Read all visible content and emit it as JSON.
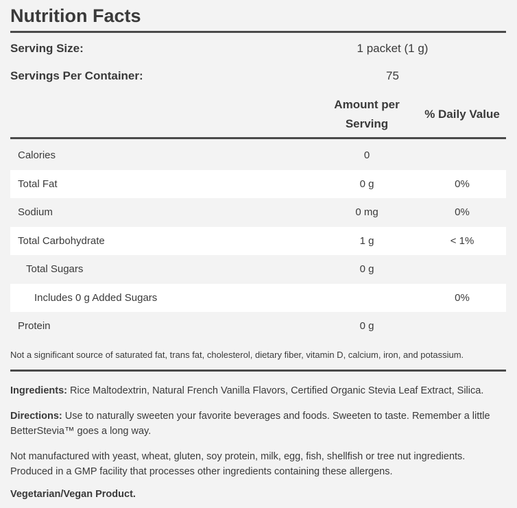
{
  "title": "Nutrition Facts",
  "serving": {
    "size_label": "Serving Size:",
    "size_value": "1 packet (1 g)",
    "per_container_label": "Servings Per Container:",
    "per_container_value": "75"
  },
  "table_header": {
    "amount_line1": "Amount per",
    "amount_line2": "Serving",
    "daily_value": "% Daily Value"
  },
  "nutrients": [
    {
      "name": "Calories",
      "amount": "0",
      "dv": ""
    },
    {
      "name": "Total Fat",
      "amount": "0 g",
      "dv": "0%"
    },
    {
      "name": "Sodium",
      "amount": "0 mg",
      "dv": "0%"
    },
    {
      "name": "Total Carbohydrate",
      "amount": "1 g",
      "dv": "< 1%"
    },
    {
      "name": "Total Sugars",
      "amount": "0 g",
      "dv": ""
    },
    {
      "name": "Includes 0 g Added Sugars",
      "amount": "",
      "dv": "0%"
    },
    {
      "name": "Protein",
      "amount": "0 g",
      "dv": ""
    }
  ],
  "footnote": "Not a significant source of saturated fat, trans fat, cholesterol, dietary fiber, vitamin D, calcium, iron, and potassium.",
  "ingredients": {
    "label": "Ingredients:",
    "text": " Rice Maltodextrin, Natural French Vanilla Flavors, Certified Organic Stevia Leaf Extract, Silica."
  },
  "directions": {
    "label": "Directions:",
    "text": " Use to naturally sweeten your favorite beverages and foods. Sweeten to taste. Remember a little BetterStevia™ goes a long way."
  },
  "allergen": "Not manufactured with yeast, wheat, gluten, soy protein, milk, egg, fish, shellfish or tree nut ingredients. Produced in a GMP facility that processes other ingredients containing these allergens.",
  "vegetarian": "Vegetarian/Vegan Product."
}
